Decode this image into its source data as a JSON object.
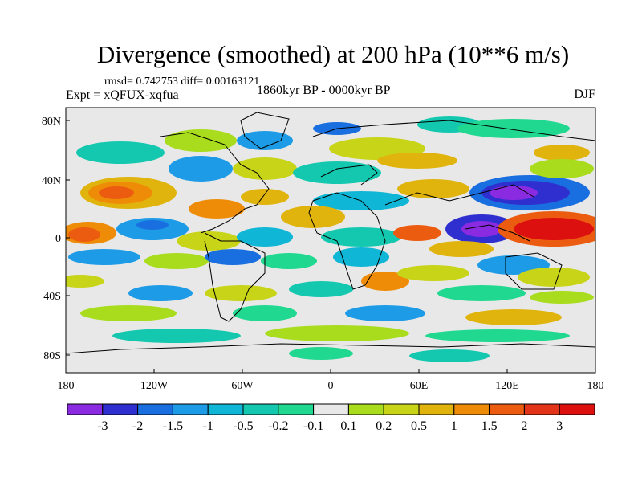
{
  "title": "Divergence (smoothed) at 200 hPa (10**6 m/s)",
  "stats": "rmsd= 0.742753 diff= 0.00163121",
  "experiment": "Expt = xQFUX-xqfua",
  "period": "1860kyr BP - 0000kyr BP",
  "season": "DJF",
  "map": {
    "background_color": "#e8e8e8",
    "y_ticks": [
      "80N",
      "40N",
      "0",
      "40S",
      "80S"
    ],
    "x_ticks": [
      "180",
      "120W",
      "60W",
      "0",
      "60E",
      "120E",
      "180"
    ]
  },
  "colorbar": {
    "labels": [
      "-3",
      "-2",
      "-1.5",
      "-1",
      "-0.5",
      "-0.2",
      "-0.1",
      "0.1",
      "0.2",
      "0.5",
      "1",
      "1.5",
      "2",
      "3"
    ],
    "colors": [
      "#8a2be2",
      "#2f2fd0",
      "#1a6fe0",
      "#1e9be6",
      "#10b6d6",
      "#14c8b0",
      "#20d890",
      "#e8e8e8",
      "#a8dc1c",
      "#c8d418",
      "#e0b40c",
      "#ee8c08",
      "#ec5c10",
      "#e23418",
      "#dd1010"
    ]
  }
}
